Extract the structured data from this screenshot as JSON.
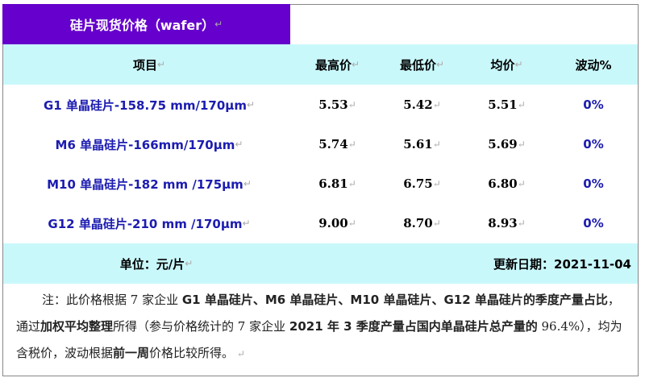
{
  "title": "硅片现货价格（wafer）",
  "header": {
    "item": "项目",
    "high": "最高价",
    "low": "最低价",
    "avg": "均价",
    "change": "波动%"
  },
  "rows": [
    {
      "item": "G1 单晶硅片-158.75 mm/170μm",
      "high": "5.53",
      "low": "5.42",
      "avg": "5.51",
      "change": "0%"
    },
    {
      "item": "M6 单晶硅片-166mm/170μm",
      "high": "5.74",
      "low": "5.61",
      "avg": "5.69",
      "change": "0%"
    },
    {
      "item": "M10 单晶硅片-182 mm /175μm",
      "high": "6.81",
      "low": "6.75",
      "avg": "6.80",
      "change": "0%"
    },
    {
      "item": "G12 单晶硅片-210 mm /170μm",
      "high": "9.00",
      "low": "8.70",
      "avg": "8.93",
      "change": "0%"
    }
  ],
  "footer": {
    "unit": "单位：元/片",
    "updated": "更新日期：2021-11-04"
  },
  "note": [
    {
      "text": "注：此价格根据 7 家企业 ",
      "bold": false
    },
    {
      "text": "G1 单晶硅片、M6 单晶硅片、M10 单晶硅片、G12 单晶硅片的季度产量占比",
      "bold": true
    },
    {
      "text": "，通过",
      "bold": false
    },
    {
      "text": "加权平均整理",
      "bold": true
    },
    {
      "text": "所得（参与价格统计的 7 家企业 ",
      "bold": false
    },
    {
      "text": "2021 年 3 季度产量占国内单晶硅片总产量的",
      "bold": true
    },
    {
      "text": " 96.4%），均为含税价，波动根据",
      "bold": false
    },
    {
      "text": "前一周",
      "bold": true
    },
    {
      "text": "价格比较所得。",
      "bold": false
    }
  ],
  "colors": {
    "title_bg": "#6600cc",
    "header_bg": "#c9f8fb",
    "item_text": "#1c1cb0"
  }
}
